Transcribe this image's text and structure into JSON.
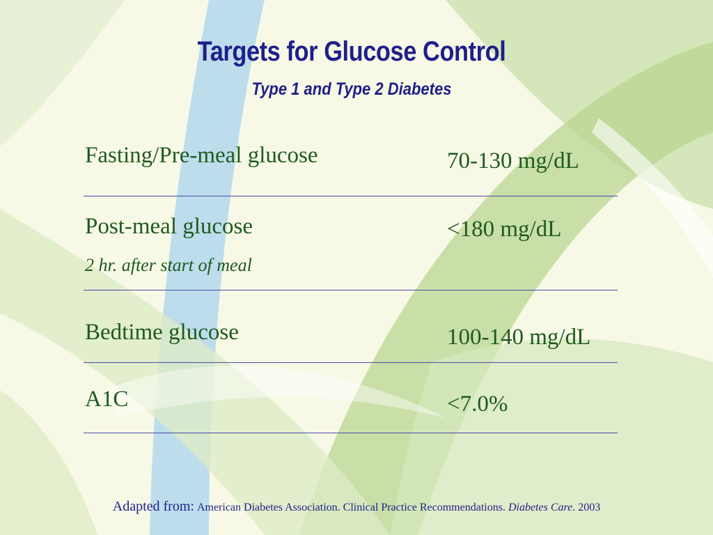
{
  "slide": {
    "title": "Targets for Glucose Control",
    "subtitle": "Type 1 and Type 2 Diabetes",
    "rows": [
      {
        "label": "Fasting/Pre-meal glucose",
        "note": "",
        "value": "70-130 mg/dL"
      },
      {
        "label": "Post-meal glucose",
        "note": "2 hr. after start of meal",
        "value": "<180 mg/dL"
      },
      {
        "label": "Bedtime glucose",
        "note": "",
        "value": "100-140 mg/dL"
      },
      {
        "label": "A1C",
        "note": "",
        "value": "<7.0%"
      }
    ],
    "footer": {
      "lead": "Adapted from:",
      "source": "American Diabetes Association. Clinical Practice Recommendations.",
      "journal": "Diabetes Care",
      "year": ". 2003"
    }
  },
  "colors": {
    "title": "#1f1f8a",
    "body_text": "#1e5a1e",
    "rule": "#4a4aa8",
    "background": "#f7f9e6"
  }
}
